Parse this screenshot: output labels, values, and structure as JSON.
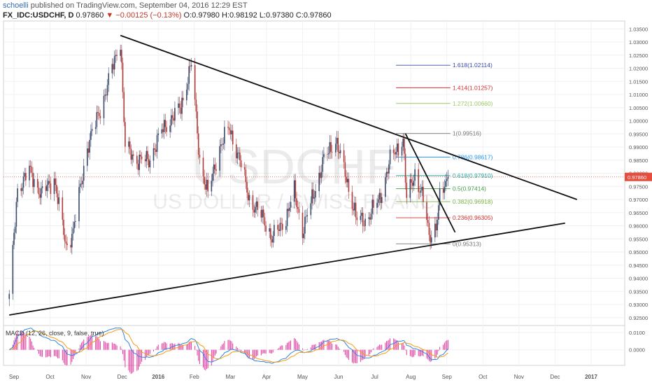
{
  "header": {
    "user": "schoelli",
    "published": " published on TradingView.com, September 04, 2016 12:29 EST",
    "symbol": "FX_IDC:USDCHF, D",
    "last": "0.97860",
    "change": "−0.00125 (−0.13%)",
    "open": "O:0.97980",
    "high": "H:0.98192",
    "low": "L:0.97380",
    "close": "C:0.97860"
  },
  "watermark": {
    "symbol": "USDCHF",
    "name": "US DOLLAR / SWISS FRANC"
  },
  "colors": {
    "up": "#3a4a6b",
    "down": "#b03a3a",
    "trend": "#111111",
    "macd": "#2e86de",
    "signal": "#f39c12",
    "hist": "#e040a0",
    "price_line": "#e74c3c"
  },
  "chart_data": [
    {
      "type": "candlestick",
      "title": "",
      "x_axis_labels": [
        "Sep",
        "Oct",
        "Nov",
        "Dec",
        "2016",
        "Feb",
        "Mar",
        "Apr",
        "May",
        "Jun",
        "Jul",
        "Aug",
        "Sep",
        "Oct",
        "Nov",
        "Dec",
        "2017"
      ],
      "y_ticks": [
        0.925,
        0.93,
        0.935,
        0.94,
        0.945,
        0.95,
        0.955,
        0.96,
        0.965,
        0.97,
        0.975,
        0.98,
        0.985,
        0.99,
        0.995,
        1.0,
        1.005,
        1.01,
        1.015,
        1.02,
        1.025,
        1.03,
        1.035
      ],
      "y_tick_labels": [
        "0.92500",
        "0.93000",
        "0.93500",
        "0.94000",
        "0.94500",
        "0.95000",
        "0.95500",
        "0.96000",
        "0.96500",
        "0.97000",
        "0.97500",
        "0.98000",
        "0.98500",
        "0.99000",
        "0.99500",
        "1.00000",
        "1.00500",
        "1.01000",
        "1.01500",
        "1.02000",
        "1.02500",
        "1.03000",
        "1.03500"
      ],
      "ylim": [
        0.922,
        1.038
      ],
      "current_price": 0.9786,
      "current_price_label": "0.97860",
      "anchors": [
        [
          "2015-08-28",
          0.932
        ],
        [
          "2015-09-04",
          0.974
        ],
        [
          "2015-09-14",
          0.981
        ],
        [
          "2015-09-24",
          0.972
        ],
        [
          "2015-10-05",
          0.978
        ],
        [
          "2015-10-15",
          0.952
        ],
        [
          "2015-10-21",
          0.958
        ],
        [
          "2015-11-02",
          0.99
        ],
        [
          "2015-11-15",
          1.007
        ],
        [
          "2015-11-30",
          1.031
        ],
        [
          "2015-12-04",
          0.99
        ],
        [
          "2015-12-14",
          0.985
        ],
        [
          "2015-12-24",
          0.985
        ],
        [
          "2016-01-05",
          0.997
        ],
        [
          "2016-01-20",
          1.005
        ],
        [
          "2016-01-29",
          1.022
        ],
        [
          "2016-02-05",
          0.985
        ],
        [
          "2016-02-12",
          0.972
        ],
        [
          "2016-02-22",
          0.99
        ],
        [
          "2016-03-01",
          0.997
        ],
        [
          "2016-03-10",
          0.985
        ],
        [
          "2016-03-18",
          0.97
        ],
        [
          "2016-03-31",
          0.962
        ],
        [
          "2016-04-06",
          0.955
        ],
        [
          "2016-04-18",
          0.963
        ],
        [
          "2016-04-25",
          0.973
        ],
        [
          "2016-05-02",
          0.958
        ],
        [
          "2016-05-10",
          0.97
        ],
        [
          "2016-05-20",
          0.985
        ],
        [
          "2016-05-30",
          0.993
        ],
        [
          "2016-06-08",
          0.978
        ],
        [
          "2016-06-17",
          0.962
        ],
        [
          "2016-06-24",
          0.962
        ],
        [
          "2016-07-06",
          0.97
        ],
        [
          "2016-07-15",
          0.985
        ],
        [
          "2016-07-26",
          0.993
        ],
        [
          "2016-07-29",
          0.97
        ],
        [
          "2016-08-05",
          0.98
        ],
        [
          "2016-08-12",
          0.97
        ],
        [
          "2016-08-17",
          0.956
        ],
        [
          "2016-08-23",
          0.96
        ],
        [
          "2016-08-26",
          0.97
        ],
        [
          "2016-09-02",
          0.9786
        ]
      ],
      "trendlines": [
        {
          "name": "upper",
          "from": [
            "2015-11-30",
            1.0325
          ],
          "to": [
            "2016-12-20",
            0.97
          ]
        },
        {
          "name": "lower",
          "from": [
            "2015-08-28",
            0.926
          ],
          "to": [
            "2016-12-10",
            0.961
          ]
        },
        {
          "name": "channel",
          "from": [
            "2016-07-28",
            0.9951
          ],
          "to": [
            "2016-09-08",
            0.9575
          ]
        }
      ],
      "fibonacci": {
        "from_date": "2016-07-20",
        "to_date": "2016-09-04",
        "levels": [
          {
            "ratio": "0",
            "value": "(0.95313)",
            "price": 0.95313,
            "color": "#777777"
          },
          {
            "ratio": "0.236",
            "value": "(0.96305)",
            "price": 0.96305,
            "color": "#d32f2f"
          },
          {
            "ratio": "0.382",
            "value": "(0.96918)",
            "price": 0.96918,
            "color": "#7cb342"
          },
          {
            "ratio": "0.5",
            "value": "(0.97414)",
            "price": 0.97414,
            "color": "#43a047"
          },
          {
            "ratio": "0.618",
            "value": "(0.97910)",
            "price": 0.9791,
            "color": "#26a69a"
          },
          {
            "ratio": "0.786",
            "value": "(0.98617)",
            "price": 0.98617,
            "color": "#2196f3"
          },
          {
            "ratio": "1",
            "value": "(0.99516)",
            "price": 0.99516,
            "color": "#777777"
          },
          {
            "ratio": "1.272",
            "value": "(1.00660)",
            "price": 1.0066,
            "color": "#9ccc65"
          },
          {
            "ratio": "1.414",
            "value": "(1.01257)",
            "price": 1.01257,
            "color": "#d32f2f"
          },
          {
            "ratio": "1.618",
            "value": "(1.02114)",
            "price": 1.02114,
            "color": "#3949ab"
          }
        ]
      }
    },
    {
      "type": "line",
      "title": "MACD (12, 26, close, 9, false, true)",
      "y_ticks": [
        0.0,
        0.01
      ],
      "y_tick_labels": [
        "0.0000",
        "0.0100"
      ],
      "ylim": [
        -0.009,
        0.014
      ]
    }
  ]
}
